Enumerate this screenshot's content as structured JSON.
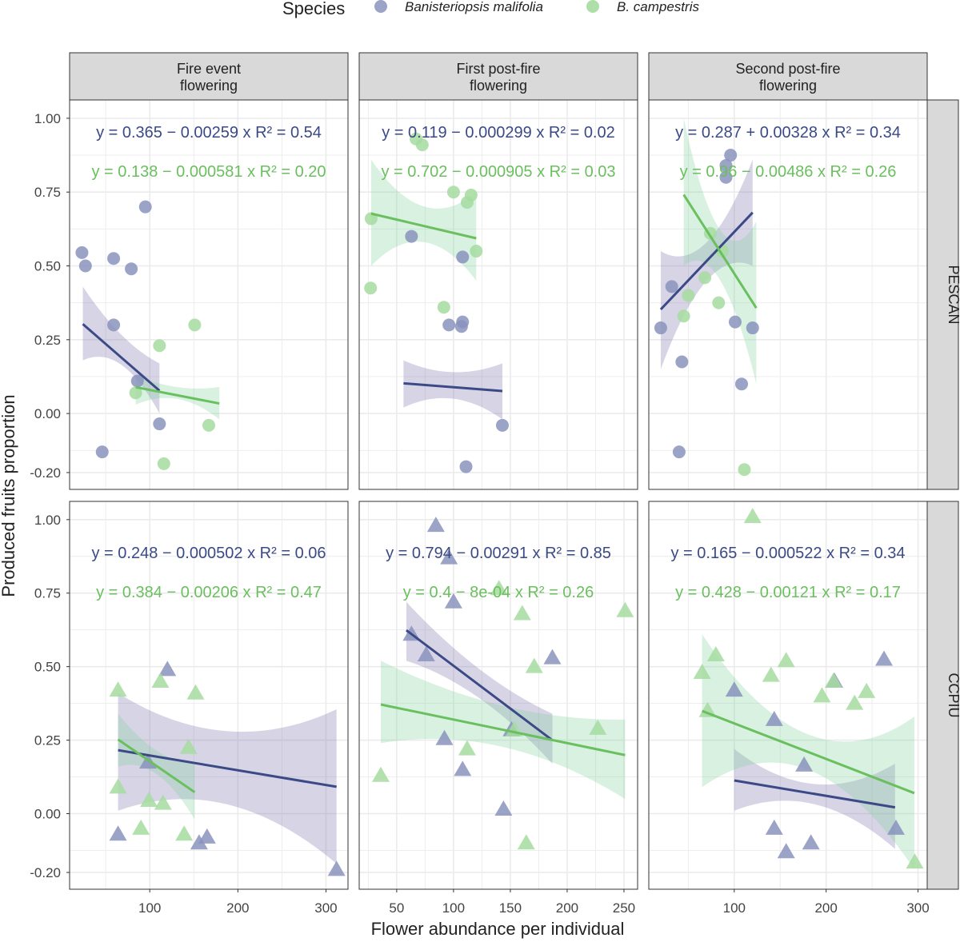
{
  "legend": {
    "title": "Species",
    "position": "top",
    "entries": [
      {
        "label": "Banisteriopsis malifolia",
        "color": "#8a93bd"
      },
      {
        "label": "B. campestris",
        "color": "#a6dca0"
      }
    ]
  },
  "colors": {
    "malifolia_point": "#8a93bd",
    "malifolia_line": "#3b4a86",
    "malifolia_ribbon": "#7a72a8",
    "campestris_point": "#a6dca0",
    "campestris_line": "#6abf5e",
    "campestris_ribbon": "#7fd19a",
    "strip_bg": "#d9d9d9",
    "grid": "#ebebeb"
  },
  "chart_data": {
    "type": "scatter",
    "xlabel": "Flower abundance per individual",
    "ylabel": "Produced fruits proportion",
    "grid": true,
    "column_strips": [
      [
        "Fire event",
        "flowering"
      ],
      [
        "First post-fire",
        "flowering"
      ],
      [
        "Second post-fire",
        "flowering"
      ]
    ],
    "row_strips": [
      "PESCAN",
      "CCPIU"
    ],
    "y_ticks": [
      "1.00",
      "0.75",
      "0.50",
      "0.25",
      "0.00",
      "-0.20"
    ],
    "y_tick_values": [
      1.0,
      0.75,
      0.5,
      0.25,
      0.0,
      -0.2
    ],
    "ylim": [
      -0.257,
      1.062
    ],
    "x_ticks": [
      [
        100,
        200,
        300
      ],
      [
        50,
        100,
        150,
        200,
        250
      ],
      [
        100,
        200,
        300
      ]
    ],
    "xlim": [
      [
        9,
        325
      ],
      [
        17,
        262
      ],
      [
        7,
        310
      ]
    ],
    "panels": [
      {
        "row": 0,
        "col": 0,
        "marker": "circle",
        "series": [
          {
            "species": 0,
            "equation": "y = 0.365 − 0.00259 x",
            "r2": "R² = 0.54",
            "intercept": 0.365,
            "slope": -0.00259,
            "fit_x": [
              24,
              111
            ],
            "ribbon": [
              [
                24,
                0.18,
                0.43
              ],
              [
                70,
                0.16,
                0.26
              ],
              [
                111,
                0.0,
                0.17
              ]
            ],
            "points": [
              [
                23,
                0.545
              ],
              [
                27,
                0.5
              ],
              [
                59,
                0.525
              ],
              [
                79,
                0.49
              ],
              [
                95,
                0.7
              ],
              [
                59,
                0.3
              ],
              [
                86,
                0.11
              ],
              [
                111,
                -0.035
              ],
              [
                46,
                -0.13
              ]
            ]
          },
          {
            "species": 1,
            "equation": "y = 0.138 − 0.000581 x",
            "r2": "R² = 0.20",
            "intercept": 0.138,
            "slope": -0.000581,
            "fit_x": [
              84,
              179
            ],
            "ribbon": [
              [
                84,
                0.03,
                0.13
              ],
              [
                130,
                0.05,
                0.09
              ],
              [
                179,
                -0.02,
                0.09
              ]
            ],
            "points": [
              [
                151,
                0.3
              ],
              [
                111,
                0.23
              ],
              [
                84,
                0.07
              ],
              [
                167,
                -0.04
              ],
              [
                116,
                -0.17
              ]
            ]
          }
        ]
      },
      {
        "row": 0,
        "col": 1,
        "marker": "circle",
        "series": [
          {
            "species": 0,
            "equation": "y = 0.119 − 0.000299 x",
            "r2": "R² = 0.02",
            "intercept": 0.119,
            "slope": -0.000299,
            "fit_x": [
              56,
              143
            ],
            "ribbon": [
              [
                56,
                0.02,
                0.18
              ],
              [
                100,
                0.05,
                0.14
              ],
              [
                143,
                -0.02,
                0.17
              ]
            ],
            "points": [
              [
                63,
                0.6
              ],
              [
                108,
                0.53
              ],
              [
                96,
                0.3
              ],
              [
                108,
                0.31
              ],
              [
                107,
                0.295
              ],
              [
                143,
                -0.04
              ],
              [
                111,
                -0.18
              ]
            ]
          },
          {
            "species": 1,
            "equation": "y = 0.702 − 0.000905 x",
            "r2": "R² = 0.03",
            "intercept": 0.702,
            "slope": -0.000905,
            "fit_x": [
              27.5,
              120
            ],
            "ribbon": [
              [
                27.5,
                0.5,
                0.86
              ],
              [
                75,
                0.58,
                0.7
              ],
              [
                120,
                0.45,
                0.75
              ]
            ],
            "points": [
              [
                27.5,
                0.66
              ],
              [
                27,
                0.425
              ],
              [
                67,
                0.93
              ],
              [
                72.5,
                0.91
              ],
              [
                100,
                0.75
              ],
              [
                112,
                0.715
              ],
              [
                115.5,
                0.74
              ],
              [
                120,
                0.55
              ],
              [
                91.5,
                0.36
              ]
            ]
          }
        ]
      },
      {
        "row": 0,
        "col": 2,
        "marker": "circle",
        "series": [
          {
            "species": 0,
            "equation": "y = 0.287 + 0.00328 x",
            "r2": "R² = 0.34",
            "intercept": 0.287,
            "slope": 0.00328,
            "fit_x": [
              20,
              120
            ],
            "ribbon": [
              [
                20,
                0.15,
                0.55
              ],
              [
                70,
                0.45,
                0.58
              ],
              [
                120,
                0.5,
                0.86
              ]
            ],
            "points": [
              [
                96,
                0.875
              ],
              [
                91,
                0.84
              ],
              [
                91,
                0.8
              ],
              [
                32,
                0.43
              ],
              [
                20,
                0.29
              ],
              [
                43,
                0.175
              ],
              [
                101,
                0.31
              ],
              [
                120,
                0.29
              ],
              [
                108,
                0.1
              ],
              [
                40,
                -0.13
              ]
            ]
          },
          {
            "species": 1,
            "equation": "y = 0.96 − 0.00486 x",
            "r2": "R² = 0.26",
            "intercept": 0.96,
            "slope": -0.00486,
            "fit_x": [
              45,
              124
            ],
            "ribbon": [
              [
                45,
                0.5,
                1.0
              ],
              [
                85,
                0.45,
                0.62
              ],
              [
                124,
                0.1,
                0.65
              ]
            ],
            "points": [
              [
                74,
                0.61
              ],
              [
                87,
                0.55
              ],
              [
                68,
                0.46
              ],
              [
                50,
                0.4
              ],
              [
                45,
                0.33
              ],
              [
                83,
                0.375
              ],
              [
                111,
                -0.19
              ]
            ]
          }
        ]
      },
      {
        "row": 1,
        "col": 0,
        "marker": "triangle",
        "series": [
          {
            "species": 0,
            "equation": "y = 0.248 − 0.000502 x",
            "r2": "R² = 0.06",
            "intercept": 0.248,
            "slope": -0.000502,
            "fit_x": [
              64,
              312
            ],
            "ribbon": [
              [
                64,
                0.01,
                0.41
              ],
              [
                190,
                0.03,
                0.28
              ],
              [
                312,
                -0.17,
                0.355
              ]
            ],
            "points": [
              [
                120,
                0.49
              ],
              [
                98,
                0.175
              ],
              [
                64,
                -0.07
              ],
              [
                156,
                -0.1
              ],
              [
                165,
                -0.08
              ],
              [
                312,
                -0.19
              ]
            ]
          },
          {
            "species": 1,
            "equation": "y = 0.384 − 0.00206 x",
            "r2": "R² = 0.47",
            "intercept": 0.384,
            "slope": -0.00206,
            "fit_x": [
              64,
              151
            ],
            "ribbon": [
              [
                64,
                0.16,
                0.34
              ],
              [
                105,
                0.14,
                0.22
              ],
              [
                151,
                -0.02,
                0.17
              ]
            ],
            "points": [
              [
                64,
                0.42
              ],
              [
                112,
                0.45
              ],
              [
                152,
                0.41
              ],
              [
                144,
                0.225
              ],
              [
                64,
                0.09
              ],
              [
                99,
                0.045
              ],
              [
                115,
                0.035
              ],
              [
                90,
                -0.05
              ],
              [
                139,
                -0.07
              ]
            ]
          }
        ]
      },
      {
        "row": 1,
        "col": 1,
        "marker": "triangle",
        "series": [
          {
            "species": 0,
            "equation": "y = 0.794 − 0.00291 x",
            "r2": "R² = 0.85",
            "intercept": 0.794,
            "slope": -0.00291,
            "fit_x": [
              58.5,
              187
            ],
            "ribbon": [
              [
                58.5,
                0.52,
                0.72
              ],
              [
                120,
                0.4,
                0.5
              ],
              [
                187,
                0.17,
                0.34
              ]
            ],
            "points": [
              [
                84.5,
                0.98
              ],
              [
                96,
                0.87
              ],
              [
                100,
                0.72
              ],
              [
                63,
                0.61
              ],
              [
                76,
                0.54
              ],
              [
                187,
                0.53
              ],
              [
                92,
                0.255
              ],
              [
                108,
                0.15
              ],
              [
                144,
                0.015
              ],
              [
                151,
                0.285
              ]
            ]
          },
          {
            "species": 1,
            "equation": "y = 0.4 − 8e-04 x",
            "r2": "R² = 0.26",
            "intercept": 0.4,
            "slope": -0.0008,
            "fit_x": [
              36,
              251
            ],
            "ribbon": [
              [
                36,
                0.24,
                0.52
              ],
              [
                140,
                0.23,
                0.37
              ],
              [
                251,
                0.05,
                0.32
              ]
            ],
            "points": [
              [
                140,
                0.765
              ],
              [
                160.5,
                0.68
              ],
              [
                251,
                0.69
              ],
              [
                171,
                0.5
              ],
              [
                227,
                0.29
              ],
              [
                112,
                0.22
              ],
              [
                36,
                0.13
              ],
              [
                164,
                -0.1
              ],
              [
                153.5,
                0.285
              ]
            ]
          }
        ]
      },
      {
        "row": 1,
        "col": 2,
        "marker": "triangle",
        "series": [
          {
            "species": 0,
            "equation": "y = 0.165 − 0.000522 x",
            "r2": "R² = 0.34",
            "intercept": 0.165,
            "slope": -0.000522,
            "fit_x": [
              100,
              275
            ],
            "ribbon": [
              [
                100,
                0.01,
                0.22
              ],
              [
                190,
                0.03,
                0.1
              ],
              [
                275,
                -0.12,
                0.17
              ]
            ],
            "points": [
              [
                100,
                0.42
              ],
              [
                143.5,
                0.32
              ],
              [
                176,
                0.165
              ],
              [
                209,
                0.45
              ],
              [
                263,
                0.525
              ],
              [
                143.5,
                -0.05
              ],
              [
                156.5,
                -0.13
              ],
              [
                183.5,
                -0.1
              ],
              [
                276,
                -0.05
              ]
            ]
          },
          {
            "species": 1,
            "equation": "y = 0.428 − 0.00121 x",
            "r2": "R² = 0.17",
            "intercept": 0.428,
            "slope": -0.00121,
            "fit_x": [
              65,
              296
            ],
            "ribbon": [
              [
                65,
                0.09,
                0.61
              ],
              [
                180,
                0.15,
                0.27
              ],
              [
                296,
                -0.19,
                0.33
              ]
            ],
            "points": [
              [
                120,
                1.01
              ],
              [
                65,
                0.48
              ],
              [
                80,
                0.54
              ],
              [
                71,
                0.35
              ],
              [
                140,
                0.47
              ],
              [
                156.5,
                0.52
              ],
              [
                195.5,
                0.4
              ],
              [
                208,
                0.45
              ],
              [
                231,
                0.375
              ],
              [
                244,
                0.415
              ],
              [
                296.5,
                -0.165
              ]
            ]
          }
        ]
      }
    ]
  }
}
